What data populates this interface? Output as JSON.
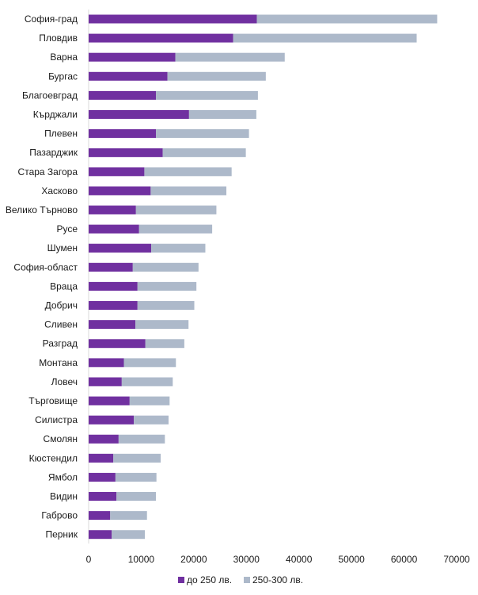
{
  "chart_data": {
    "type": "bar",
    "orientation": "horizontal",
    "stacked": true,
    "categories": [
      "София-град",
      "Пловдив",
      "Варна",
      "Бургас",
      "Благоевград",
      "Кърджали",
      "Плевен",
      "Пазарджик",
      "Стара Загора",
      "Хасково",
      "Велико Търново",
      "Русе",
      "Шумен",
      "София-област",
      "Враца",
      "Добрич",
      "Сливен",
      "Разград",
      "Монтана",
      "Ловеч",
      "Търговище",
      "Силистра",
      "Смолян",
      "Кюстендил",
      "Ямбол",
      "Видин",
      "Габрово",
      "Перник"
    ],
    "series": [
      {
        "name": "до 250 лв.",
        "color": "#7030a0",
        "values": [
          32000,
          27500,
          16500,
          15000,
          12800,
          19100,
          12800,
          14100,
          10600,
          11800,
          9000,
          9600,
          11900,
          8400,
          9300,
          9300,
          8900,
          10800,
          6700,
          6300,
          7800,
          8600,
          5700,
          4700,
          5100,
          5300,
          4100,
          4400
        ]
      },
      {
        "name": "250-300 лв.",
        "color": "#adb9ca",
        "values": [
          34300,
          34900,
          20800,
          18700,
          19400,
          12800,
          17700,
          15800,
          16600,
          14400,
          15300,
          13900,
          10300,
          12500,
          11200,
          10800,
          10100,
          7400,
          9900,
          9700,
          7600,
          6600,
          8800,
          9000,
          7800,
          7500,
          7000,
          6300
        ]
      }
    ],
    "xlim": [
      0,
      70000
    ],
    "xticks": [
      0,
      10000,
      20000,
      30000,
      40000,
      50000,
      60000,
      70000
    ],
    "tick_labels": [
      "0",
      "10000",
      "20000",
      "30000",
      "40000",
      "50000",
      "60000",
      "70000"
    ],
    "grid": false,
    "legend": {
      "position": "bottom"
    },
    "title": "",
    "xlabel": "",
    "ylabel": ""
  }
}
